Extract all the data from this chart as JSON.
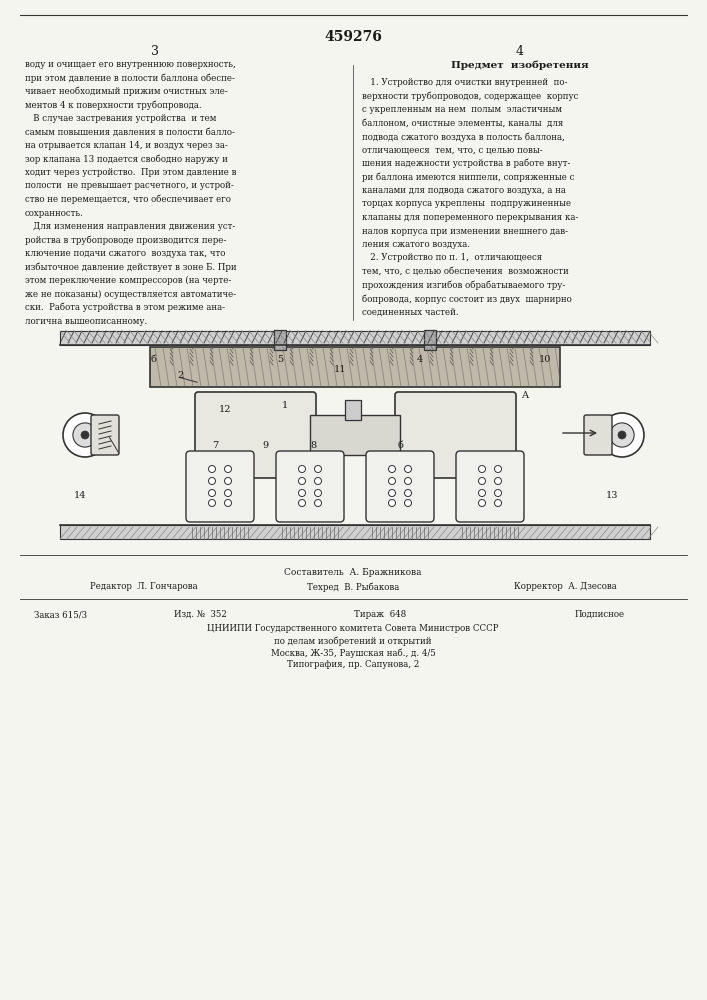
{
  "patent_number": "459276",
  "page_left": "3",
  "page_right": "4",
  "left_text": [
    "воду и очищает его внутреннюю поверхность,",
    "при этом давление в полости баллона обеспе-",
    "чивает необходимый прижим очистных эле-",
    "ментов 4 к поверхности трубопровода.",
    "   В случае застревания устройства  и тем",
    "самым повышения давления в полости балло-",
    "на отрывается клапан 14, и воздух через за-",
    "зор клапана 13 подается свободно наружу и",
    "ходит через устройство.  При этом давление в",
    "полости  не превышает расчетного, и устрой-",
    "ство не перемещается, что обеспечивает его",
    "сохранность.",
    "   Для изменения направления движения уст-",
    "ройства в трубопроводе производится пере-",
    "ключение подачи сжатого  воздуха так, что",
    "избыточное давление действует в зоне Б. При",
    "этом переключение компрессоров (на черте-",
    "же не показаны) осуществляется автоматиче-",
    "ски.  Работа устройства в этом режиме ана-",
    "логична вышеописанному."
  ],
  "right_heading": "Предмет  изобретения",
  "right_text": [
    "   1. Устройство для очистки внутренней  по-",
    "верхности трубопроводов, содержащее  корпус",
    "с укрепленным на нем  полым  эластичным",
    "баллоном, очистные элементы, каналы  для",
    "подвода сжатого воздуха в полость баллона,",
    "отличающееся  тем, что, с целью повы-",
    "шения надежности устройства в работе внут-",
    "ри баллона имеются ниппели, сопряженные с",
    "каналами для подвода сжатого воздуха, а на",
    "торцах корпуса укреплены  подпружиненные",
    "клапаны для попеременного перекрывания ка-",
    "налов корпуса при изменении внешнего дав-",
    "ления сжатого воздуха.",
    "   2. Устройство по п. 1,  отличающееся",
    "тем, что, с целью обеспечения  возможности",
    "прохождения изгибов обрабатываемого тру-",
    "бопровода, корпус состоит из двух  шарнирно",
    "соединенных частей."
  ],
  "bottom_lines": [
    [
      "Составитель  А. Бражникова"
    ],
    [
      "Редактор  Л. Гончарова",
      "Техред  В. Рыбакова",
      "Корректор  А. Дзесова"
    ],
    [
      "Заказ 615/3",
      "Изд. №  352",
      "Тираж  648",
      "Подписное"
    ],
    [
      "ЦНИИПИ Государственного комитета Совета Министров СССР"
    ],
    [
      "по делам изобретений и открытий"
    ],
    [
      "Москва, Ж-35, Раушская наб., д. 4/5"
    ],
    [
      "Типография, пр. Сапунова, 2"
    ]
  ],
  "bg_color": "#f5f5f0",
  "text_color": "#1a1a1a",
  "line_color": "#333333"
}
